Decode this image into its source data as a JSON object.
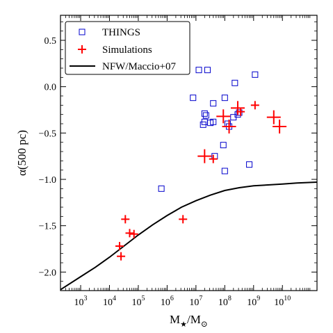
{
  "chart_data": {
    "type": "scatter",
    "xlabel": {
      "base": "M",
      "sub1": "★",
      "mid": "/M",
      "sub2": "⊙"
    },
    "ylabel": "α(500 pc)",
    "x_scale": "log",
    "xlim_log10": [
      2.3,
      11.2
    ],
    "ylim": [
      -2.2,
      0.77
    ],
    "x_ticks": [
      {
        "base": "10",
        "exp": "3"
      },
      {
        "base": "10",
        "exp": "4"
      },
      {
        "base": "10",
        "exp": "5"
      },
      {
        "base": "10",
        "exp": "6"
      },
      {
        "base": "10",
        "exp": "7"
      },
      {
        "base": "10",
        "exp": "8"
      },
      {
        "base": "10",
        "exp": "9"
      },
      {
        "base": "10",
        "exp": "10"
      }
    ],
    "y_ticks": [
      "0.5",
      "0.0",
      "−0.5",
      "−1.0",
      "−1.5",
      "−2.0"
    ],
    "legend_position": "top-left",
    "legend": [
      {
        "label": "THINGS",
        "marker": "square",
        "color": "#0000cc"
      },
      {
        "label": "Simulations",
        "marker": "plus",
        "color": "#ff0000"
      },
      {
        "label": "NFW/Maccio+07",
        "marker": "line",
        "color": "#000000"
      }
    ],
    "series": [
      {
        "name": "THINGS",
        "marker": "open-square",
        "color": "#0000cc",
        "log10_x": [
          5.8,
          6.9,
          7.1,
          7.3,
          7.25,
          7.3,
          7.35,
          7.4,
          7.5,
          7.6,
          7.6,
          7.65,
          7.95,
          8.0,
          8.0,
          8.1,
          8.15,
          8.35,
          8.3,
          8.45,
          8.5,
          8.85,
          9.05
        ],
        "y": [
          -1.1,
          -0.12,
          0.18,
          -0.38,
          -0.41,
          -0.29,
          -0.31,
          0.18,
          -0.39,
          -0.38,
          -0.18,
          -0.75,
          -0.63,
          -0.12,
          -0.91,
          -0.4,
          -0.43,
          0.04,
          -0.33,
          -0.3,
          -0.28,
          -0.84,
          0.13
        ]
      },
      {
        "name": "Simulations",
        "marker": "plus",
        "color": "#ff0000",
        "log10_x": [
          4.35,
          4.4,
          4.55,
          4.7,
          4.85,
          6.55,
          7.3,
          7.6,
          7.95,
          8.15,
          8.45,
          8.55,
          9.05,
          9.7,
          9.9
        ],
        "y": [
          -1.72,
          -1.83,
          -1.43,
          -1.58,
          -1.59,
          -1.43,
          -0.75,
          -0.78,
          -0.32,
          -0.43,
          -0.23,
          -0.27,
          -0.2,
          -0.33,
          -0.43
        ],
        "size": [
          6,
          6,
          6,
          6,
          6,
          6,
          10,
          6,
          10,
          10,
          10,
          6,
          6,
          10,
          10
        ]
      },
      {
        "name": "NFW/Maccio+07",
        "marker": "line",
        "color": "#000000",
        "log10_x": [
          2.3,
          3.0,
          3.5,
          4.0,
          4.5,
          5.0,
          5.5,
          6.0,
          6.5,
          7.0,
          7.5,
          8.0,
          8.5,
          9.0,
          9.5,
          10.0,
          10.5,
          11.2
        ],
        "y": [
          -2.19,
          -2.05,
          -1.95,
          -1.84,
          -1.72,
          -1.6,
          -1.49,
          -1.39,
          -1.3,
          -1.23,
          -1.17,
          -1.12,
          -1.09,
          -1.07,
          -1.06,
          -1.05,
          -1.04,
          -1.03
        ]
      }
    ]
  }
}
